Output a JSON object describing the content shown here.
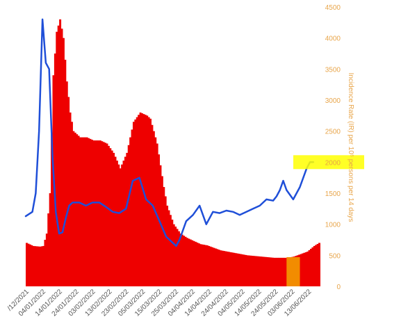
{
  "chart_data": {
    "type": "bar",
    "title": "",
    "ylabel_right": "Incidence Rate (IR) per 10⁵ persons per 14 days",
    "y2_range": [
      0,
      4500
    ],
    "y2_ticks": [
      "0",
      "500",
      "1000",
      "1500",
      "2000",
      "2500",
      "3000",
      "3500",
      "4000",
      "4500"
    ],
    "x_tick_labels": [
      "/12/2021",
      "04/01/2022",
      "14/01/2022",
      "24/01/2022",
      "03/02/2022",
      "13/02/2022",
      "23/02/2022",
      "05/03/2022",
      "15/03/2022",
      "25/03/2022",
      "04/04/2022",
      "14/04/2022",
      "24/04/2022",
      "04/05/2022",
      "14/05/2022",
      "24/05/2022",
      "03/06/2022",
      "13/06/2022"
    ],
    "bars": {
      "name": "",
      "color": "#ee0000",
      "day_index": [
        0,
        4,
        8,
        10,
        12,
        14,
        16,
        18,
        20,
        22,
        24,
        26,
        28,
        32,
        36,
        40,
        44,
        48,
        52,
        56,
        60,
        64,
        68,
        72,
        74,
        78,
        82,
        84,
        88,
        92,
        96,
        100,
        104,
        108,
        112,
        116,
        120,
        124,
        128,
        132,
        136,
        140,
        144,
        148,
        152,
        156,
        160,
        164,
        168,
        172,
        175
      ],
      "values": [
        700,
        650,
        640,
        650,
        850,
        1500,
        3400,
        4100,
        4300,
        4000,
        3300,
        2800,
        2500,
        2400,
        2400,
        2350,
        2350,
        2300,
        2150,
        1900,
        2150,
        2650,
        2800,
        2750,
        2700,
        2300,
        1600,
        1300,
        1000,
        850,
        780,
        730,
        680,
        660,
        620,
        580,
        560,
        540,
        520,
        500,
        490,
        480,
        470,
        460,
        460,
        460,
        480,
        520,
        560,
        650,
        700
      ]
    },
    "highlight_bar": {
      "color": "#f28c00",
      "day_start": 156,
      "day_end": 164,
      "value": 470
    },
    "line": {
      "name": "",
      "color": "#1f4fd8",
      "day_index": [
        0,
        4,
        6,
        8,
        10,
        12,
        14,
        16,
        18,
        20,
        22,
        24,
        26,
        28,
        32,
        36,
        40,
        44,
        48,
        52,
        56,
        60,
        64,
        68,
        72,
        76,
        80,
        84,
        88,
        90,
        92,
        96,
        100,
        104,
        108,
        112,
        116,
        120,
        124,
        128,
        132,
        136,
        140,
        144,
        148,
        150,
        152,
        154,
        156,
        160,
        164,
        168,
        170,
        172
      ],
      "values": [
        1130,
        1200,
        1500,
        2500,
        4300,
        3600,
        3500,
        2100,
        1200,
        850,
        870,
        1100,
        1300,
        1350,
        1350,
        1300,
        1350,
        1350,
        1280,
        1200,
        1180,
        1250,
        1700,
        1750,
        1400,
        1300,
        1050,
        800,
        700,
        650,
        750,
        1050,
        1150,
        1300,
        1000,
        1200,
        1180,
        1220,
        1200,
        1150,
        1200,
        1250,
        1300,
        1400,
        1380,
        1450,
        1550,
        1700,
        1550,
        1400,
        1600,
        1900,
        2000,
        2000
      ]
    },
    "highlight_marker": {
      "color": "#ffff00",
      "label": "2000"
    },
    "grid": false,
    "legend": "none"
  }
}
